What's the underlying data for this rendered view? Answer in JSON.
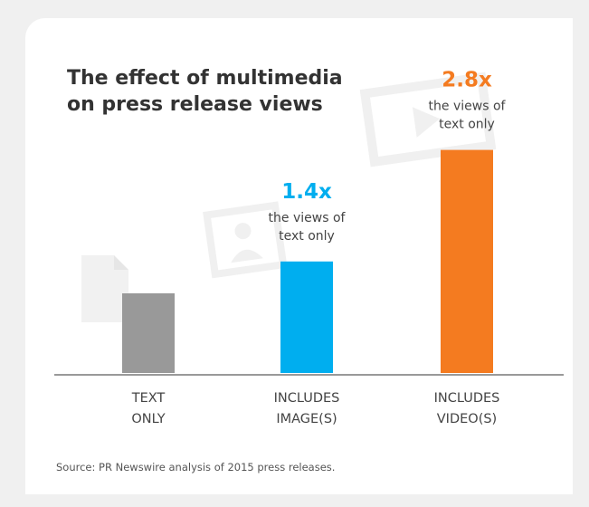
{
  "title_lines": [
    "The effect of multimedia",
    "on press release views"
  ],
  "source": "Source: PR Newswire analysis of 2015 press releases.",
  "chart_data": {
    "type": "bar",
    "title": "The effect of multimedia on press release views",
    "categories": [
      [
        "TEXT",
        "ONLY"
      ],
      [
        "INCLUDES",
        "IMAGE(S)"
      ],
      [
        "INCLUDES",
        "VIDEO(S)"
      ]
    ],
    "values": [
      1.0,
      1.4,
      2.8
    ],
    "bar_colors": [
      "#999999",
      "#00aeef",
      "#f47b20"
    ],
    "annotations": [
      null,
      {
        "multiplier": "1.4x",
        "lines": [
          "the views of",
          "text only"
        ]
      },
      {
        "multiplier": "2.8x",
        "lines": [
          "the views of",
          "text only"
        ]
      }
    ],
    "ylim": [
      0,
      3
    ],
    "grid": false,
    "icons": [
      "document-icon",
      "image-icon",
      "video-icon"
    ]
  }
}
